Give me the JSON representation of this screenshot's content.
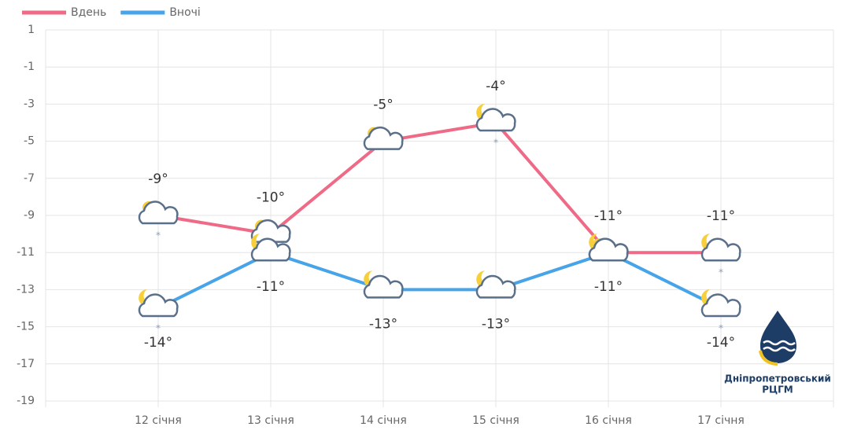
{
  "chart_data": {
    "type": "line",
    "categories": [
      "12 січня",
      "13 січня",
      "14 січня",
      "15 січня",
      "16 січня",
      "17 січня"
    ],
    "series": [
      {
        "name": "Вдень",
        "color": "#ef6a86",
        "values": [
          -9,
          -10,
          -5,
          -4,
          -11,
          -11
        ],
        "value_labels": [
          "-9°",
          "-10°",
          "-5°",
          "-4°",
          "-11°",
          "-11°"
        ]
      },
      {
        "name": "Вночі",
        "color": "#47a4e8",
        "values": [
          -14,
          -11,
          -13,
          -13,
          -11,
          -14
        ],
        "value_labels": [
          "-14°",
          "-11°",
          "-13°",
          "-13°",
          "-11°",
          "-14°"
        ]
      }
    ],
    "ylim": [
      -19,
      1
    ],
    "yticks": [
      1,
      -1,
      -3,
      -5,
      -7,
      -9,
      -11,
      -13,
      -15,
      -17,
      -19
    ],
    "grid": true
  },
  "logo": {
    "line1": "Дніпропетровський",
    "line2": "РЦГМ"
  }
}
